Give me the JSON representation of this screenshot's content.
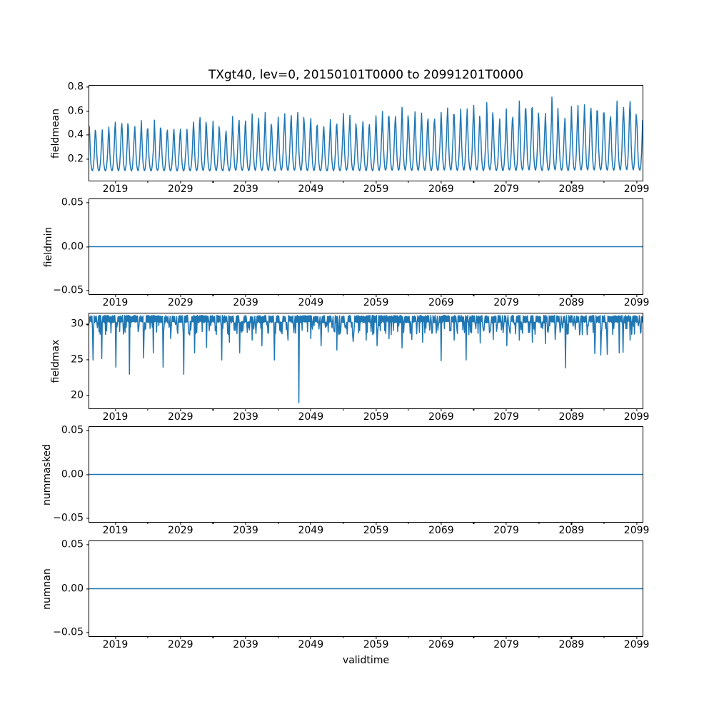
{
  "figure": {
    "title": "TXgt40, lev=0, 20150101T0000 to 20991201T0000",
    "xlabel": "validtime",
    "line_color": "#1f77b4",
    "background_color": "#ffffff",
    "spine_color": "#000000"
  },
  "chart_data": {
    "type": "line",
    "title": "TXgt40, lev=0, 20150101T0000 to 20991201T0000",
    "xlabel": "validtime",
    "x_unit": "year (monthly samples, 2015-01 to 2099-12)",
    "x_start": 2015.0,
    "x_end": 2099.9167,
    "grid": false,
    "legend": false,
    "x_major_ticks": [
      2019,
      2029,
      2039,
      2049,
      2059,
      2069,
      2079,
      2089,
      2099
    ],
    "x_minor_ticks": [
      2024,
      2034,
      2044,
      2054,
      2064,
      2074,
      2084,
      2094
    ],
    "subplots": [
      {
        "ylabel": "fieldmean",
        "ylim": [
          0.018,
          0.812
        ],
        "yticks": [
          {
            "v": 0.2,
            "label": "0.2"
          },
          {
            "v": 0.4,
            "label": "0.4"
          },
          {
            "v": 0.6,
            "label": "0.6"
          },
          {
            "v": 0.8,
            "label": "0.8"
          }
        ],
        "series": {
          "kind": "seasonal",
          "description": "Monthly fieldmean oscillating yearly; austral-summer (Dec-Jan) peaks rise from ~0.45 in 2015 to ~0.75 by 2099; winter troughs ~0.08-0.15",
          "seed": 42,
          "base": 0.085,
          "monthly_profile": [
            0.46,
            0.36,
            0.24,
            0.165,
            0.125,
            0.105,
            0.1,
            0.115,
            0.15,
            0.215,
            0.3,
            0.41
          ],
          "trend_growth": 0.42,
          "year_amp_range": [
            0.84,
            1.18
          ],
          "monthly_jitter": 0.16,
          "clamp": [
            0.065,
            0.79
          ]
        }
      },
      {
        "ylabel": "fieldmin",
        "ylim": [
          -0.0542,
          0.0542
        ],
        "yticks": [
          {
            "v": -0.05,
            "label": "−0.05"
          },
          {
            "v": 0.0,
            "label": "0.00"
          },
          {
            "v": 0.05,
            "label": "0.05"
          }
        ],
        "series": {
          "kind": "constant",
          "value": 0.0,
          "description": "fieldmin is 0.0 for the whole period"
        }
      },
      {
        "ylabel": "fieldmax",
        "ylim": [
          18.2,
          31.55
        ],
        "yticks": [
          {
            "v": 20,
            "label": "20"
          },
          {
            "v": 25,
            "label": "25"
          },
          {
            "v": 30,
            "label": "30"
          }
        ],
        "series": {
          "kind": "band_with_spikes",
          "description": "fieldmax stays in a dense band ~30.2-31.2 with frequent small winter dips to ~28.5-30 and occasional deep drops; deepest spike ~19 near 2047",
          "seed": 7,
          "band_mid": 30.75,
          "band_half": 0.42,
          "noise": 0.12,
          "winter_dip_months": [
            3,
            8
          ],
          "winter_dips_per_year": [
            2,
            4
          ],
          "winter_dip_value_range": [
            28.5,
            30.0
          ],
          "major_spikes": [
            [
              2015.55,
              25.0
            ],
            [
              2016.9,
              25.2
            ],
            [
              2019.05,
              24.0
            ],
            [
              2021.15,
              23.0
            ],
            [
              2023.3,
              25.3
            ],
            [
              2024.8,
              26.0
            ],
            [
              2026.35,
              24.0
            ],
            [
              2027.5,
              28.0
            ],
            [
              2029.5,
              23.0
            ],
            [
              2031.2,
              26.0
            ],
            [
              2033.0,
              26.8
            ],
            [
              2035.3,
              25.0
            ],
            [
              2036.5,
              27.5
            ],
            [
              2038.1,
              26.0
            ],
            [
              2040.0,
              27.8
            ],
            [
              2041.5,
              27.0
            ],
            [
              2043.4,
              25.0
            ],
            [
              2045.5,
              27.8
            ],
            [
              2047.15,
              19.0
            ],
            [
              2049.0,
              28.0
            ],
            [
              2050.6,
              27.0
            ],
            [
              2053.0,
              26.4
            ],
            [
              2055.5,
              27.6
            ],
            [
              2057.5,
              27.8
            ],
            [
              2059.2,
              27.0
            ],
            [
              2061.0,
              28.0
            ],
            [
              2063.0,
              26.7
            ],
            [
              2064.5,
              27.9
            ],
            [
              2066.2,
              27.5
            ],
            [
              2069.0,
              24.9
            ],
            [
              2071.0,
              27.8
            ],
            [
              2072.8,
              25.0
            ],
            [
              2075.0,
              27.4
            ],
            [
              2077.0,
              27.9
            ],
            [
              2079.1,
              27.0
            ],
            [
              2081.0,
              27.8
            ],
            [
              2083.0,
              27.5
            ],
            [
              2085.0,
              27.3
            ],
            [
              2086.5,
              27.9
            ],
            [
              2088.1,
              23.9
            ],
            [
              2092.6,
              25.9
            ],
            [
              2093.5,
              25.7
            ],
            [
              2094.5,
              25.8
            ],
            [
              2096.3,
              26.0
            ],
            [
              2096.9,
              26.1
            ],
            [
              2098.0,
              27.8
            ]
          ]
        }
      },
      {
        "ylabel": "nummasked",
        "ylim": [
          -0.0542,
          0.0542
        ],
        "yticks": [
          {
            "v": -0.05,
            "label": "−0.05"
          },
          {
            "v": 0.0,
            "label": "0.00"
          },
          {
            "v": 0.05,
            "label": "0.05"
          }
        ],
        "series": {
          "kind": "constant",
          "value": 0.0,
          "description": "nummasked is 0.0 for the whole period"
        }
      },
      {
        "ylabel": "numnan",
        "ylim": [
          -0.0542,
          0.0542
        ],
        "yticks": [
          {
            "v": -0.05,
            "label": "−0.05"
          },
          {
            "v": 0.0,
            "label": "0.00"
          },
          {
            "v": 0.05,
            "label": "0.05"
          }
        ],
        "series": {
          "kind": "constant",
          "value": 0.0,
          "description": "numnan is 0.0 for the whole period"
        }
      }
    ]
  }
}
